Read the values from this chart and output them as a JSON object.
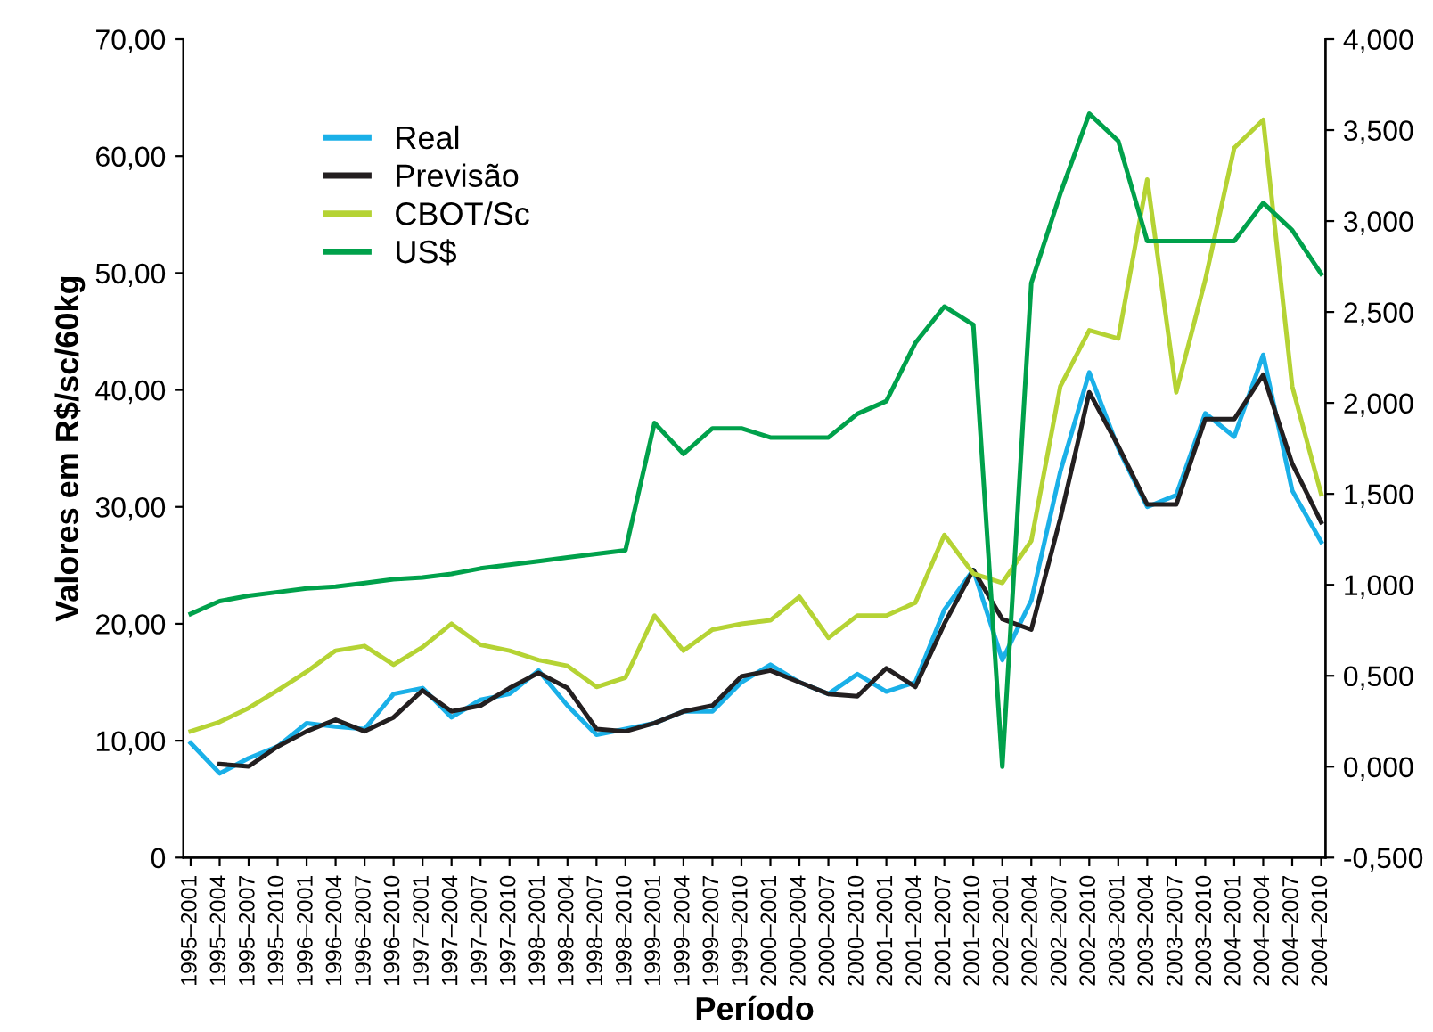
{
  "chart_data": {
    "type": "line",
    "xlabel": "Período",
    "ylabel": "Valores em R$/sc/60kg",
    "categories": [
      "1995–2001",
      "1995–2004",
      "1995–2007",
      "1995–2010",
      "1996–2001",
      "1996–2004",
      "1996–2007",
      "1996–2010",
      "1997–2001",
      "1997–2004",
      "1997–2007",
      "1997–2010",
      "1998–2001",
      "1998–2004",
      "1998–2007",
      "1998–2010",
      "1999–2001",
      "1999–2004",
      "1999–2007",
      "1999–2010",
      "2000–2001",
      "2000–2004",
      "2000–2007",
      "2000–2010",
      "2001–2001",
      "2001–2004",
      "2001–2007",
      "2001–2010",
      "2002–2001",
      "2002–2004",
      "2002–2007",
      "2002–2010",
      "2003–2001",
      "2003–2004",
      "2003–2007",
      "2003–2010",
      "2004–2001",
      "2004–2004",
      "2004–2007",
      "2004–2010"
    ],
    "series": [
      {
        "name": "Real",
        "color": "#1ab0e8",
        "values": [
          9.8,
          7.2,
          8.5,
          9.5,
          11.5,
          11.2,
          11.0,
          14.0,
          14.5,
          12.0,
          13.5,
          14.0,
          16.0,
          13.0,
          10.5,
          11.0,
          11.5,
          12.5,
          12.5,
          15.0,
          16.5,
          15.0,
          14.0,
          15.7,
          14.2,
          15.0,
          21.2,
          24.6,
          16.9,
          22.0,
          33.0,
          41.5,
          35.0,
          30.0,
          31.0,
          38.0,
          36.0,
          43.0,
          31.4,
          27.0
        ]
      },
      {
        "name": "Previsão",
        "color": "#231f20",
        "values": [
          null,
          8.0,
          7.8,
          9.5,
          10.8,
          11.8,
          10.8,
          12.0,
          14.3,
          12.5,
          13.0,
          14.5,
          15.8,
          14.5,
          11.0,
          10.8,
          11.5,
          12.5,
          13.0,
          15.5,
          16.0,
          15.0,
          14.0,
          13.8,
          16.2,
          14.6,
          20.0,
          24.6,
          20.4,
          19.5,
          29.0,
          39.8,
          35.2,
          30.2,
          30.2,
          37.5,
          37.5,
          41.3,
          33.7,
          28.7
        ]
      },
      {
        "name": "CBOT/Sc",
        "color": "#b5d334",
        "values": [
          10.8,
          11.6,
          12.8,
          14.3,
          15.9,
          17.7,
          18.1,
          16.5,
          18.0,
          20.0,
          18.2,
          17.7,
          16.9,
          16.4,
          14.6,
          15.4,
          20.7,
          17.7,
          19.5,
          20.0,
          20.3,
          22.3,
          18.8,
          20.7,
          20.7,
          21.8,
          27.6,
          24.3,
          23.5,
          27.1,
          40.3,
          45.1,
          44.4,
          58.0,
          39.8,
          49.4,
          60.7,
          63.1,
          40.3,
          31.1
        ]
      },
      {
        "name": "US$",
        "color": "#00a14b",
        "axis": "y2",
        "values": [
          0.84,
          0.91,
          0.94,
          0.96,
          0.98,
          0.99,
          1.01,
          1.03,
          1.04,
          1.06,
          1.09,
          1.11,
          1.13,
          1.15,
          1.17,
          1.19,
          1.89,
          1.72,
          1.86,
          1.86,
          1.81,
          1.81,
          1.81,
          1.94,
          2.01,
          2.33,
          2.53,
          2.43,
          0.0,
          2.66,
          3.15,
          3.59,
          3.44,
          2.89,
          2.89,
          2.89,
          2.89,
          3.1,
          2.95,
          2.71
        ]
      }
    ],
    "ylim": [
      0,
      70
    ],
    "yticks": [
      {
        "value": 0,
        "label": "0"
      },
      {
        "value": 10,
        "label": "10,00"
      },
      {
        "value": 20,
        "label": "20,00"
      },
      {
        "value": 30,
        "label": "30,00"
      },
      {
        "value": 40,
        "label": "40,00"
      },
      {
        "value": 50,
        "label": "50,00"
      },
      {
        "value": 60,
        "label": "60,00"
      },
      {
        "value": 70,
        "label": "70,00"
      }
    ],
    "y2lim": [
      -0.5,
      4
    ],
    "y2ticks": [
      {
        "value": -0.5,
        "label": "-0,500"
      },
      {
        "value": 0,
        "label": "0,000"
      },
      {
        "value": 0.5,
        "label": "0,500"
      },
      {
        "value": 1,
        "label": "1,000"
      },
      {
        "value": 1.5,
        "label": "1,500"
      },
      {
        "value": 2,
        "label": "2,000"
      },
      {
        "value": 2.5,
        "label": "2,500"
      },
      {
        "value": 3,
        "label": "3,000"
      },
      {
        "value": 3.5,
        "label": "3,500"
      },
      {
        "value": 4,
        "label": "4,000"
      }
    ],
    "legend": "top left",
    "grid": false,
    "marker": "none",
    "line_style": "solid"
  }
}
